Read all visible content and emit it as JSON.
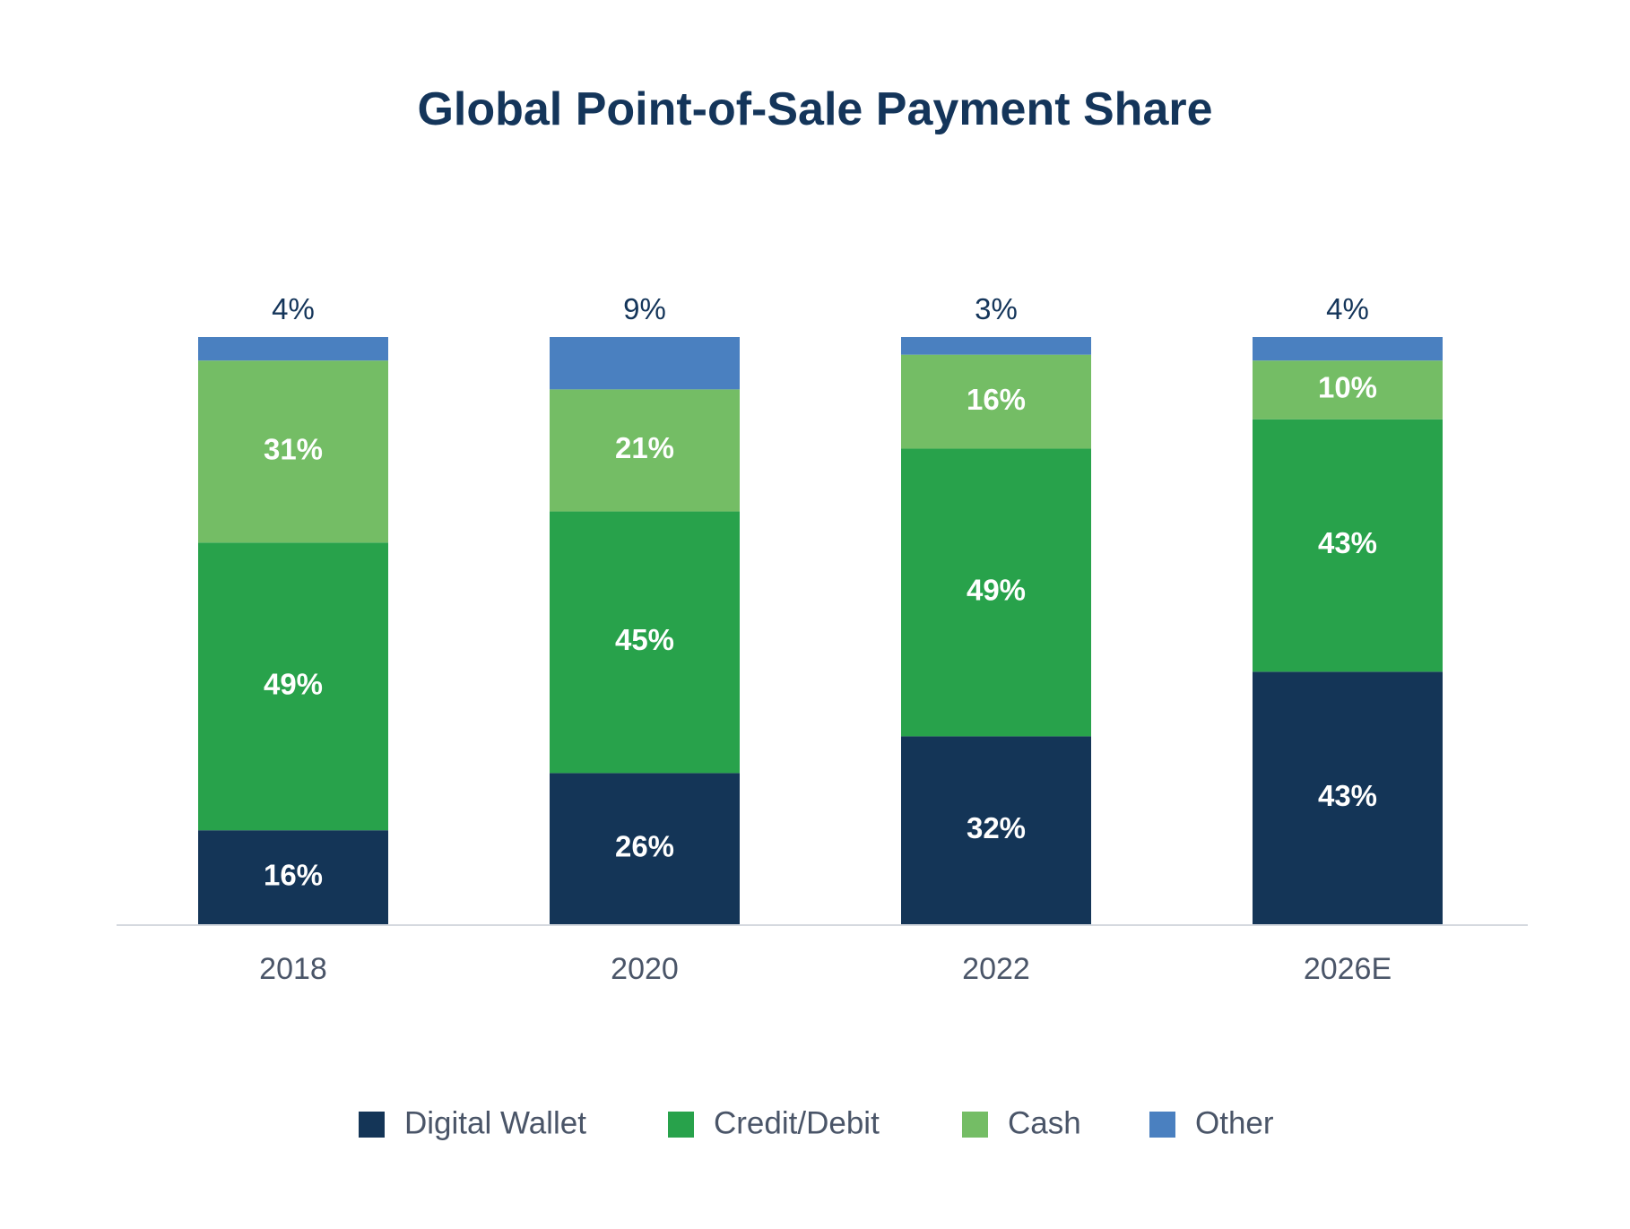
{
  "chart_data": {
    "type": "bar",
    "stacked": true,
    "title": "Global Point-of-Sale Payment Share",
    "categories": [
      "2018",
      "2020",
      "2022",
      "2026E"
    ],
    "series": [
      {
        "name": "Digital Wallet",
        "color": "#143557",
        "values": [
          16,
          26,
          32,
          43
        ],
        "labels": [
          "16%",
          "26%",
          "32%",
          "43%"
        ]
      },
      {
        "name": "Credit/Debit",
        "color": "#28a24b",
        "values": [
          49,
          45,
          49,
          43
        ],
        "labels": [
          "49%",
          "45%",
          "49%",
          "43%"
        ]
      },
      {
        "name": "Cash",
        "color": "#74bd65",
        "values": [
          31,
          21,
          16,
          10
        ],
        "labels": [
          "31%",
          "21%",
          "16%",
          "10%"
        ]
      },
      {
        "name": "Other",
        "color": "#4a80c0",
        "values": [
          4,
          9,
          3,
          4
        ],
        "labels": [
          "4%",
          "9%",
          "3%",
          "4%"
        ]
      }
    ],
    "xlabel": "",
    "ylabel": "",
    "grid": false,
    "legend_position": "bottom"
  }
}
